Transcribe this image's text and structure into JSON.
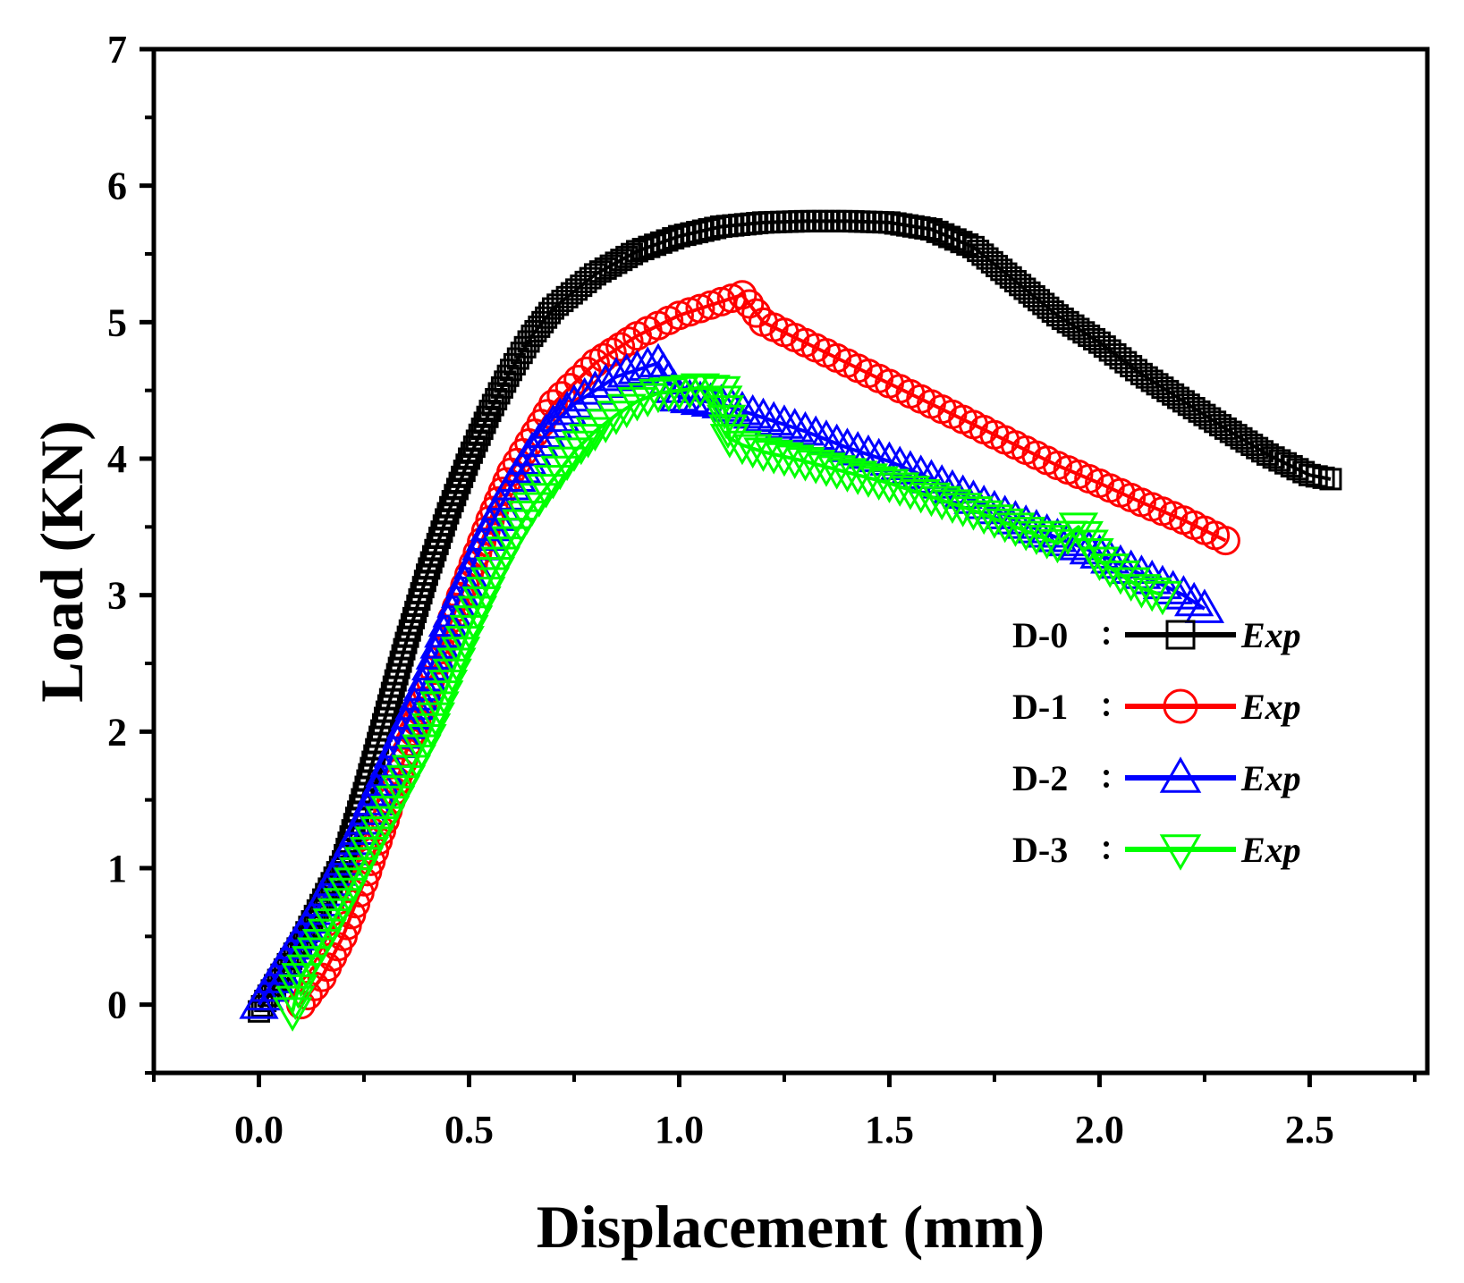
{
  "chart_data": {
    "type": "line",
    "title": "",
    "xlabel": "Displacement (mm)",
    "ylabel": "Load (KN)",
    "xlim": [
      -0.25,
      2.78
    ],
    "ylim": [
      -0.5,
      7
    ],
    "xticks": [
      "0.0",
      "0.5",
      "1.0",
      "1.5",
      "2.0",
      "2.5"
    ],
    "xtick_values": [
      0,
      0.5,
      1.0,
      1.5,
      2.0,
      2.5
    ],
    "yticks": [
      "0",
      "1",
      "2",
      "3",
      "4",
      "5",
      "6",
      "7"
    ],
    "ytick_values": [
      0,
      1,
      2,
      3,
      4,
      5,
      6,
      7
    ],
    "grid": false,
    "legend_position": "right",
    "series": [
      {
        "name": "D-0",
        "label": "Exp",
        "color": "#000000",
        "marker": "square",
        "x": [
          0.0,
          0.1,
          0.2,
          0.25,
          0.3,
          0.35,
          0.4,
          0.45,
          0.5,
          0.55,
          0.6,
          0.65,
          0.7,
          0.8,
          0.9,
          1.0,
          1.1,
          1.2,
          1.3,
          1.4,
          1.5,
          1.6,
          1.7,
          1.8,
          1.9,
          2.0,
          2.1,
          2.2,
          2.3,
          2.4,
          2.5,
          2.55
        ],
        "y": [
          -0.05,
          0.45,
          1.05,
          1.55,
          2.1,
          2.65,
          3.15,
          3.6,
          4.0,
          4.35,
          4.65,
          4.9,
          5.1,
          5.35,
          5.52,
          5.63,
          5.7,
          5.73,
          5.74,
          5.74,
          5.73,
          5.68,
          5.55,
          5.3,
          5.05,
          4.85,
          4.62,
          4.42,
          4.22,
          4.03,
          3.88,
          3.85
        ]
      },
      {
        "name": "D-1",
        "label": "Exp",
        "color": "#ff0000",
        "marker": "circle",
        "x": [
          0.1,
          0.15,
          0.2,
          0.25,
          0.3,
          0.35,
          0.4,
          0.45,
          0.5,
          0.55,
          0.6,
          0.7,
          0.8,
          0.9,
          1.0,
          1.1,
          1.15,
          1.2,
          1.3,
          1.4,
          1.5,
          1.6,
          1.7,
          1.8,
          1.9,
          2.0,
          2.1,
          2.2,
          2.3
        ],
        "y": [
          0.0,
          0.2,
          0.5,
          0.9,
          1.35,
          1.85,
          2.3,
          2.75,
          3.15,
          3.55,
          3.9,
          4.4,
          4.7,
          4.9,
          5.05,
          5.15,
          5.2,
          5.0,
          4.85,
          4.7,
          4.55,
          4.4,
          4.25,
          4.1,
          3.95,
          3.82,
          3.68,
          3.55,
          3.4
        ]
      },
      {
        "name": "D-2",
        "label": "Exp",
        "color": "#0000ff",
        "marker": "triangle-up",
        "x": [
          0.0,
          0.05,
          0.1,
          0.15,
          0.2,
          0.25,
          0.3,
          0.35,
          0.4,
          0.45,
          0.5,
          0.55,
          0.6,
          0.65,
          0.7,
          0.75,
          0.8,
          0.85,
          0.9,
          0.95,
          1.0,
          1.1,
          1.2,
          1.3,
          1.4,
          1.5,
          1.6,
          1.7,
          1.8,
          1.9,
          2.0,
          2.1,
          2.2,
          2.25
        ],
        "y": [
          0.0,
          0.25,
          0.5,
          0.75,
          1.05,
          1.35,
          1.7,
          2.05,
          2.4,
          2.8,
          3.15,
          3.5,
          3.8,
          4.05,
          4.25,
          4.4,
          4.5,
          4.6,
          4.65,
          4.7,
          4.45,
          4.4,
          4.3,
          4.2,
          4.08,
          3.98,
          3.85,
          3.7,
          3.55,
          3.42,
          3.3,
          3.15,
          3.0,
          2.9
        ]
      },
      {
        "name": "D-3",
        "label": "Exp",
        "color": "#00ff00",
        "marker": "triangle-down",
        "x": [
          0.08,
          0.1,
          0.15,
          0.2,
          0.25,
          0.3,
          0.35,
          0.4,
          0.45,
          0.5,
          0.55,
          0.6,
          0.65,
          0.7,
          0.75,
          0.8,
          0.85,
          0.9,
          0.95,
          1.0,
          1.05,
          1.1,
          1.12,
          1.15,
          1.2,
          1.3,
          1.4,
          1.5,
          1.6,
          1.7,
          1.8,
          1.9,
          1.95,
          2.0,
          2.05,
          2.1,
          2.15
        ],
        "y": [
          -0.05,
          0.2,
          0.45,
          0.75,
          1.05,
          1.35,
          1.65,
          1.95,
          2.35,
          2.75,
          3.1,
          3.4,
          3.65,
          3.85,
          4.05,
          4.2,
          4.32,
          4.42,
          4.48,
          4.5,
          4.52,
          4.5,
          4.15,
          4.1,
          4.05,
          3.98,
          3.9,
          3.82,
          3.72,
          3.62,
          3.5,
          3.38,
          3.5,
          3.25,
          3.15,
          3.05,
          3.0
        ]
      }
    ]
  }
}
